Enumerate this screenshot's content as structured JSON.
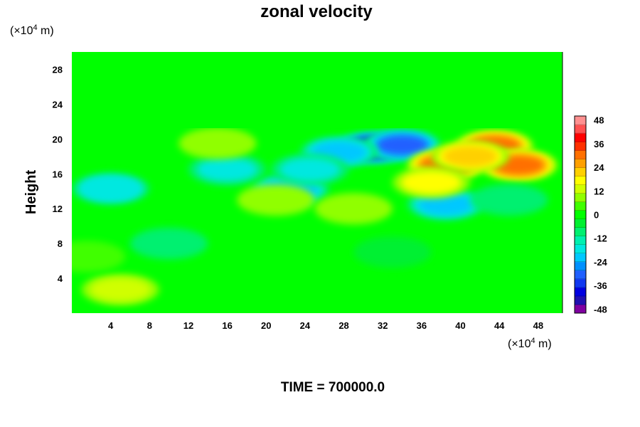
{
  "chart_data": {
    "type": "heatmap",
    "title": "zonal velocity",
    "ylabel": "Height",
    "xlabel": "",
    "x_unit": "(×10",
    "x_unit_exp": "4",
    "x_unit_suffix": " m)",
    "y_unit": "(×10",
    "y_unit_exp": "4",
    "y_unit_suffix": " m)",
    "xlim": [
      0,
      50.5
    ],
    "ylim": [
      0,
      30
    ],
    "x_ticks": [
      4,
      8,
      12,
      16,
      20,
      24,
      28,
      32,
      36,
      40,
      44,
      48
    ],
    "y_ticks": [
      4,
      8,
      12,
      16,
      20,
      24,
      28
    ],
    "colorbar": {
      "range": [
        -50,
        50
      ],
      "ticks": [
        48,
        36,
        24,
        12,
        0,
        -12,
        -24,
        -36,
        -48
      ],
      "colors": [
        "#7f00a0",
        "#2010b0",
        "#0000e0",
        "#1038f0",
        "#2060ff",
        "#0090ff",
        "#00c8ff",
        "#00e8e0",
        "#00f0b0",
        "#00f070",
        "#00f030",
        "#00ff00",
        "#40ff00",
        "#90ff00",
        "#d0ff00",
        "#ffff00",
        "#ffd000",
        "#ffa000",
        "#ff7000",
        "#ff3000",
        "#ff0000",
        "#ff5050",
        "#ff9090"
      ]
    },
    "field_features": [
      {
        "x": 31,
        "y": 19,
        "value": -42
      },
      {
        "x": 34,
        "y": 19.3,
        "value": -34
      },
      {
        "x": 27.5,
        "y": 18.5,
        "value": -24
      },
      {
        "x": 38.5,
        "y": 12.5,
        "value": -26
      },
      {
        "x": 22.5,
        "y": 14.2,
        "value": -22
      },
      {
        "x": 16,
        "y": 16.5,
        "value": -18
      },
      {
        "x": 4,
        "y": 14.3,
        "value": -20
      },
      {
        "x": 24.5,
        "y": 16.5,
        "value": -16
      },
      {
        "x": 43.5,
        "y": 19.2,
        "value": 32
      },
      {
        "x": 46,
        "y": 17,
        "value": 34
      },
      {
        "x": 38.5,
        "y": 17,
        "value": 30
      },
      {
        "x": 41,
        "y": 18,
        "value": 24
      },
      {
        "x": 37,
        "y": 15,
        "value": 16
      },
      {
        "x": 15,
        "y": 19.5,
        "value": 10
      },
      {
        "x": 21,
        "y": 13,
        "value": 10
      },
      {
        "x": 5,
        "y": 2.7,
        "value": 12
      },
      {
        "x": 1.5,
        "y": 6.5,
        "value": 6
      },
      {
        "x": 29,
        "y": 12,
        "value": 8
      },
      {
        "x": 10,
        "y": 8,
        "value": -8
      },
      {
        "x": 45,
        "y": 13,
        "value": -10
      },
      {
        "x": 33,
        "y": 7,
        "value": -6
      }
    ]
  },
  "footer": {
    "label": "TIME = 700000.0"
  }
}
